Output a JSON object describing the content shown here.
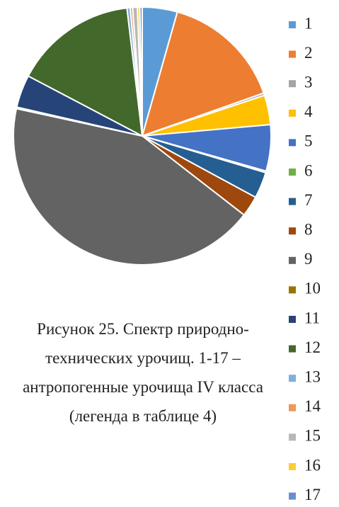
{
  "chart_data": {
    "type": "pie",
    "title": "Рисунок 25. Спектр природно-технических урочищ. 1-17  – антропогенные урочища IV класса (легенда в таблице 4)",
    "categories": [
      "1",
      "2",
      "3",
      "4",
      "5",
      "6",
      "7",
      "8",
      "9",
      "10",
      "11",
      "12",
      "13",
      "14",
      "15",
      "16",
      "17"
    ],
    "values": [
      4.4,
      15.2,
      0.3,
      3.7,
      5.8,
      0.2,
      3.3,
      2.6,
      42.9,
      0.2,
      4.1,
      15.4,
      0.4,
      0.3,
      0.6,
      0.3,
      0.3
    ],
    "colors": [
      "#5b9bd5",
      "#ed7d31",
      "#a5a5a5",
      "#ffc000",
      "#4472c4",
      "#70ad47",
      "#255e91",
      "#9e480e",
      "#636363",
      "#997300",
      "#264478",
      "#43682b",
      "#7cafdd",
      "#f1975a",
      "#b7b7b7",
      "#ffcd33",
      "#698ed0"
    ],
    "legend": "right"
  }
}
